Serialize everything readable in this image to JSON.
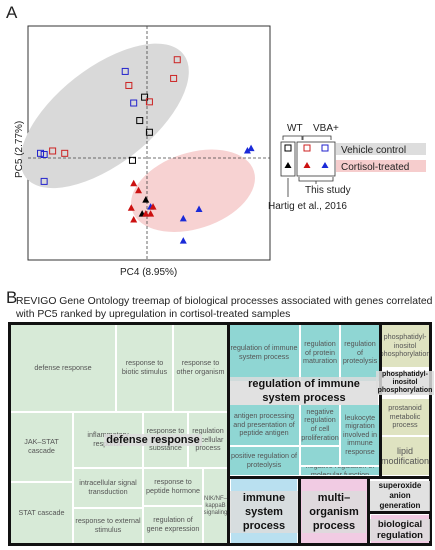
{
  "panel_a": {
    "letter": "A",
    "chart_data": {
      "type": "scatter",
      "xlabel": "PC4 (8.95%)",
      "ylabel": "PC5 (2.77%)",
      "xlim": [
        -1.0,
        1.0
      ],
      "ylim": [
        -1.0,
        1.0
      ],
      "grid": false,
      "series": [
        {
          "name": "WT Vehicle control",
          "marker": "open-square",
          "color": "#000000",
          "points": [
            [
              -0.02,
              0.52
            ],
            [
              -0.06,
              0.32
            ],
            [
              -0.12,
              -0.02
            ],
            [
              0.02,
              0.22
            ]
          ]
        },
        {
          "name": "VBA+ Vehicle control",
          "marker": "open-square",
          "color": "#2222cc",
          "points": [
            [
              -0.18,
              0.74
            ],
            [
              -0.88,
              0.04
            ],
            [
              -0.85,
              -0.2
            ],
            [
              -0.85,
              0.03
            ],
            [
              -0.11,
              0.47
            ]
          ]
        },
        {
          "name": "WT Vehicle control (red)",
          "marker": "open-square",
          "color": "#cc2222",
          "points": [
            [
              0.25,
              0.84
            ],
            [
              0.22,
              0.68
            ],
            [
              0.02,
              0.48
            ],
            [
              -0.78,
              0.06
            ],
            [
              -0.68,
              0.04
            ],
            [
              -0.15,
              0.62
            ]
          ]
        },
        {
          "name": "WT Cortisol-treated",
          "marker": "triangle",
          "color": "#000000",
          "points": [
            [
              -0.01,
              -0.36
            ],
            [
              -0.04,
              -0.48
            ]
          ]
        },
        {
          "name": "VBA+ Cortisol-treated",
          "marker": "triangle",
          "color": "#1a2ad8",
          "points": [
            [
              0.43,
              -0.44
            ],
            [
              0.3,
              -0.52
            ],
            [
              0.03,
              -0.42
            ],
            [
              0.83,
              0.06
            ],
            [
              0.86,
              0.08
            ],
            [
              0.3,
              -0.71
            ]
          ]
        },
        {
          "name": "Cortisol-treated (red)",
          "marker": "triangle",
          "color": "#cc1111",
          "points": [
            [
              -0.11,
              -0.22
            ],
            [
              -0.07,
              -0.28
            ],
            [
              -0.13,
              -0.43
            ],
            [
              -0.01,
              -0.48
            ],
            [
              0.03,
              -0.48
            ],
            [
              -0.11,
              -0.53
            ],
            [
              0.05,
              -0.42
            ]
          ]
        }
      ],
      "ellipses": [
        {
          "name": "vehicle",
          "color": "#d9d9d9"
        },
        {
          "name": "cortisol",
          "color": "#f7d2d2"
        }
      ]
    },
    "legend": {
      "wt": "WT",
      "vba": "VBA+",
      "vehicle": "Vehicle control",
      "cortisol": "Cortisol-treated",
      "this_study": "This study",
      "hartig": "Hartig et al., 2016"
    }
  },
  "panel_b": {
    "letter": "B",
    "caption": "REVIGO Gene Ontology treemap of biological processes associated with genes correlated with PC5 ranked by upregulation in cortisol-treated samples",
    "groups": {
      "defense_response": "defense response",
      "regulation_immune": "regulation of immune system process",
      "immune_system": "immune system process",
      "multi_organism": "multi– organism process",
      "superoxide": "superoxide anion generation",
      "biological_regulation": "biological regulation",
      "phosphatidyl": "phosphatidyl-inositol phosphorylation"
    },
    "cells": {
      "defense_response": "defense response",
      "response_biotic": "response to biotic stimulus",
      "response_other_organism": "response to other organism",
      "jak_stat": "JAK–STAT cascade",
      "inflammatory": "inflammatory response",
      "response_organic": "response to organic substance",
      "regulation_cellular": "regulation of cellular process",
      "stat_cascade": "STAT cascade",
      "intracellular_signal": "intracellular signal transduction",
      "response_peptide": "response to peptide hormone",
      "nik_nf": "NIK/NF– kappaB signaling",
      "response_external": "response to external stimulus",
      "regulation_gene": "regulation of gene expression",
      "reg_immune": "regulation of immune system process",
      "reg_protein_maturation": "regulation of protein maturation",
      "reg_proteolysis": "regulation of proteolysis",
      "antigen": "antigen processing and presentation of peptide antigen",
      "neg_reg_prolif": "negative regulation of cell proliferation",
      "leukocyte": "leukocyte migration involved in immune response",
      "pos_reg_proteolysis": "positive regulation of proteolysis",
      "neg_reg_molecular": "negative regulation of molecular function",
      "phosphatidyl_1": "phosphatidyl-inositol phosphorylation",
      "prostanoid": "prostanoid metabolic process",
      "lipid_mod": "lipid modification"
    }
  }
}
